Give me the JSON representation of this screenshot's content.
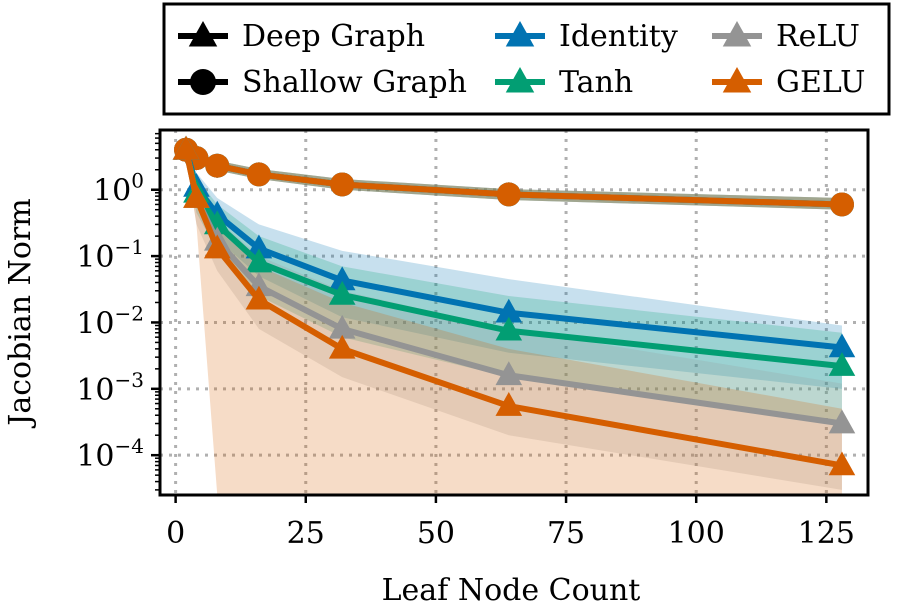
{
  "chart_data": {
    "type": "line",
    "xlabel": "Leaf Node Count",
    "ylabel": "Jacobian Norm",
    "xlim": [
      -3,
      133
    ],
    "ylim": [
      -4.6,
      0.9
    ],
    "y_scale": "log",
    "grid": true,
    "x_ticks": [
      0,
      25,
      50,
      75,
      100,
      125
    ],
    "x_tick_labels": [
      "0",
      "25",
      "50",
      "75",
      "100",
      "125"
    ],
    "y_ticks": [
      0,
      -1,
      -2,
      -3,
      -4
    ],
    "y_tick_labels": [
      {
        "base": "10",
        "exp": "0"
      },
      {
        "base": "10",
        "exp": "−1"
      },
      {
        "base": "10",
        "exp": "−2"
      },
      {
        "base": "10",
        "exp": "−3"
      },
      {
        "base": "10",
        "exp": "−4"
      }
    ],
    "legend": {
      "placement": "top",
      "entries": [
        {
          "label": "Deep Graph",
          "marker": "triangle",
          "color": "#000000"
        },
        {
          "label": "Shallow Graph",
          "marker": "circle",
          "color": "#000000"
        },
        {
          "label": "Identity",
          "marker": "triangle",
          "color": "#0173b2"
        },
        {
          "label": "Tanh",
          "marker": "triangle",
          "color": "#029e73"
        },
        {
          "label": "ReLU",
          "marker": "triangle",
          "color": "#949494"
        },
        {
          "label": "GELU",
          "marker": "triangle",
          "color": "#d55e00"
        }
      ]
    },
    "series": [
      {
        "name": "Shallow Graph – Identity",
        "graph": "shallow",
        "activation": "Identity",
        "color": "#0173b2",
        "x": [
          2,
          4,
          8,
          16,
          32,
          64,
          128
        ],
        "y": [
          4.0,
          3.0,
          2.3,
          1.7,
          1.2,
          0.85,
          0.6
        ],
        "band_lo": [
          3.4,
          2.6,
          1.95,
          1.45,
          1.0,
          0.7,
          0.5
        ],
        "band_hi": [
          4.7,
          3.5,
          2.75,
          2.05,
          1.45,
          1.02,
          0.75
        ]
      },
      {
        "name": "Shallow Graph – Tanh",
        "graph": "shallow",
        "activation": "Tanh",
        "color": "#029e73",
        "x": [
          2,
          4,
          8,
          16,
          32,
          64,
          128
        ],
        "y": [
          4.0,
          3.0,
          2.3,
          1.7,
          1.2,
          0.85,
          0.6
        ],
        "band_lo": [
          3.4,
          2.6,
          1.95,
          1.45,
          1.0,
          0.7,
          0.5
        ],
        "band_hi": [
          4.7,
          3.5,
          2.75,
          2.05,
          1.45,
          1.02,
          0.75
        ]
      },
      {
        "name": "Shallow Graph – ReLU",
        "graph": "shallow",
        "activation": "ReLU",
        "color": "#949494",
        "x": [
          2,
          4,
          8,
          16,
          32,
          64,
          128
        ],
        "y": [
          4.0,
          3.0,
          2.3,
          1.7,
          1.2,
          0.85,
          0.6
        ],
        "band_lo": [
          3.4,
          2.6,
          1.95,
          1.45,
          1.0,
          0.7,
          0.5
        ],
        "band_hi": [
          4.7,
          3.5,
          2.75,
          2.05,
          1.45,
          1.02,
          0.75
        ]
      },
      {
        "name": "Shallow Graph – GELU",
        "graph": "shallow",
        "activation": "GELU",
        "color": "#d55e00",
        "x": [
          2,
          4,
          8,
          16,
          32,
          64,
          128
        ],
        "y": [
          4.0,
          3.0,
          2.3,
          1.7,
          1.2,
          0.85,
          0.6
        ],
        "band_lo": [
          3.4,
          2.6,
          1.95,
          1.45,
          1.0,
          0.7,
          0.5
        ],
        "band_hi": [
          4.7,
          3.5,
          2.75,
          2.05,
          1.45,
          1.02,
          0.75
        ]
      },
      {
        "name": "Deep Graph – Identity",
        "graph": "deep",
        "activation": "Identity",
        "color": "#0173b2",
        "x": [
          2,
          4,
          8,
          16,
          32,
          64,
          128
        ],
        "y": [
          4.0,
          1.1,
          0.42,
          0.13,
          0.043,
          0.014,
          0.0042
        ],
        "band_lo": [
          3.0,
          0.6,
          0.18,
          0.05,
          0.012,
          0.0035,
          0.001
        ],
        "band_hi": [
          5.2,
          1.8,
          0.75,
          0.3,
          0.12,
          0.045,
          0.009
        ]
      },
      {
        "name": "Deep Graph – Tanh",
        "graph": "deep",
        "activation": "Tanh",
        "color": "#029e73",
        "x": [
          2,
          4,
          8,
          16,
          32,
          64,
          128
        ],
        "y": [
          4.0,
          0.9,
          0.3,
          0.08,
          0.026,
          0.0075,
          0.0022
        ],
        "band_lo": [
          3.0,
          0.45,
          0.12,
          0.025,
          0.006,
          0.0015,
          0.0003
        ],
        "band_hi": [
          5.2,
          1.5,
          0.6,
          0.2,
          0.07,
          0.025,
          0.007
        ]
      },
      {
        "name": "Deep Graph – ReLU",
        "graph": "deep",
        "activation": "ReLU",
        "color": "#949494",
        "x": [
          2,
          4,
          8,
          16,
          32,
          64,
          128
        ],
        "y": [
          4.0,
          0.75,
          0.17,
          0.035,
          0.008,
          0.0016,
          0.0003
        ],
        "band_lo": [
          3.0,
          0.3,
          0.06,
          0.008,
          0.0015,
          0.0002,
          3e-05
        ],
        "band_hi": [
          5.2,
          1.3,
          0.35,
          0.1,
          0.03,
          0.008,
          0.0012
        ]
      },
      {
        "name": "Deep Graph – GELU",
        "graph": "deep",
        "activation": "GELU",
        "color": "#d55e00",
        "x": [
          2,
          4,
          8,
          16,
          32,
          64,
          128
        ],
        "y": [
          4.0,
          0.75,
          0.13,
          0.022,
          0.004,
          0.00055,
          7e-05
        ],
        "band_lo": [
          3.0,
          0.3,
          1e-05,
          1e-05,
          1e-05,
          1e-05,
          1e-05
        ],
        "band_hi": [
          5.2,
          1.3,
          0.3,
          0.07,
          0.02,
          0.004,
          0.0005
        ]
      }
    ]
  }
}
